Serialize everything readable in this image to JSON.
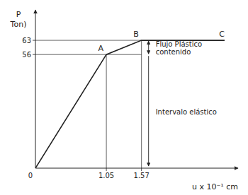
{
  "chart_data": {
    "type": "line",
    "x": [
      0,
      1.05,
      1.57,
      2.8
    ],
    "values": [
      0,
      56,
      63,
      63
    ],
    "point_labels": [
      null,
      "A",
      "B",
      "C"
    ],
    "color": "#222222",
    "x_label": "u x 10⁻¹ cm",
    "y_label": [
      "P",
      "Ton)"
    ],
    "annotations": [
      "Flujo Plástico",
      "contenido",
      "Intervalo elástico"
    ],
    "xlim": [
      0,
      3.0
    ],
    "ylim": [
      0,
      78
    ],
    "xticks": [
      0,
      1.05,
      1.57
    ],
    "yticks": [
      56,
      63
    ],
    "grid": false
  }
}
